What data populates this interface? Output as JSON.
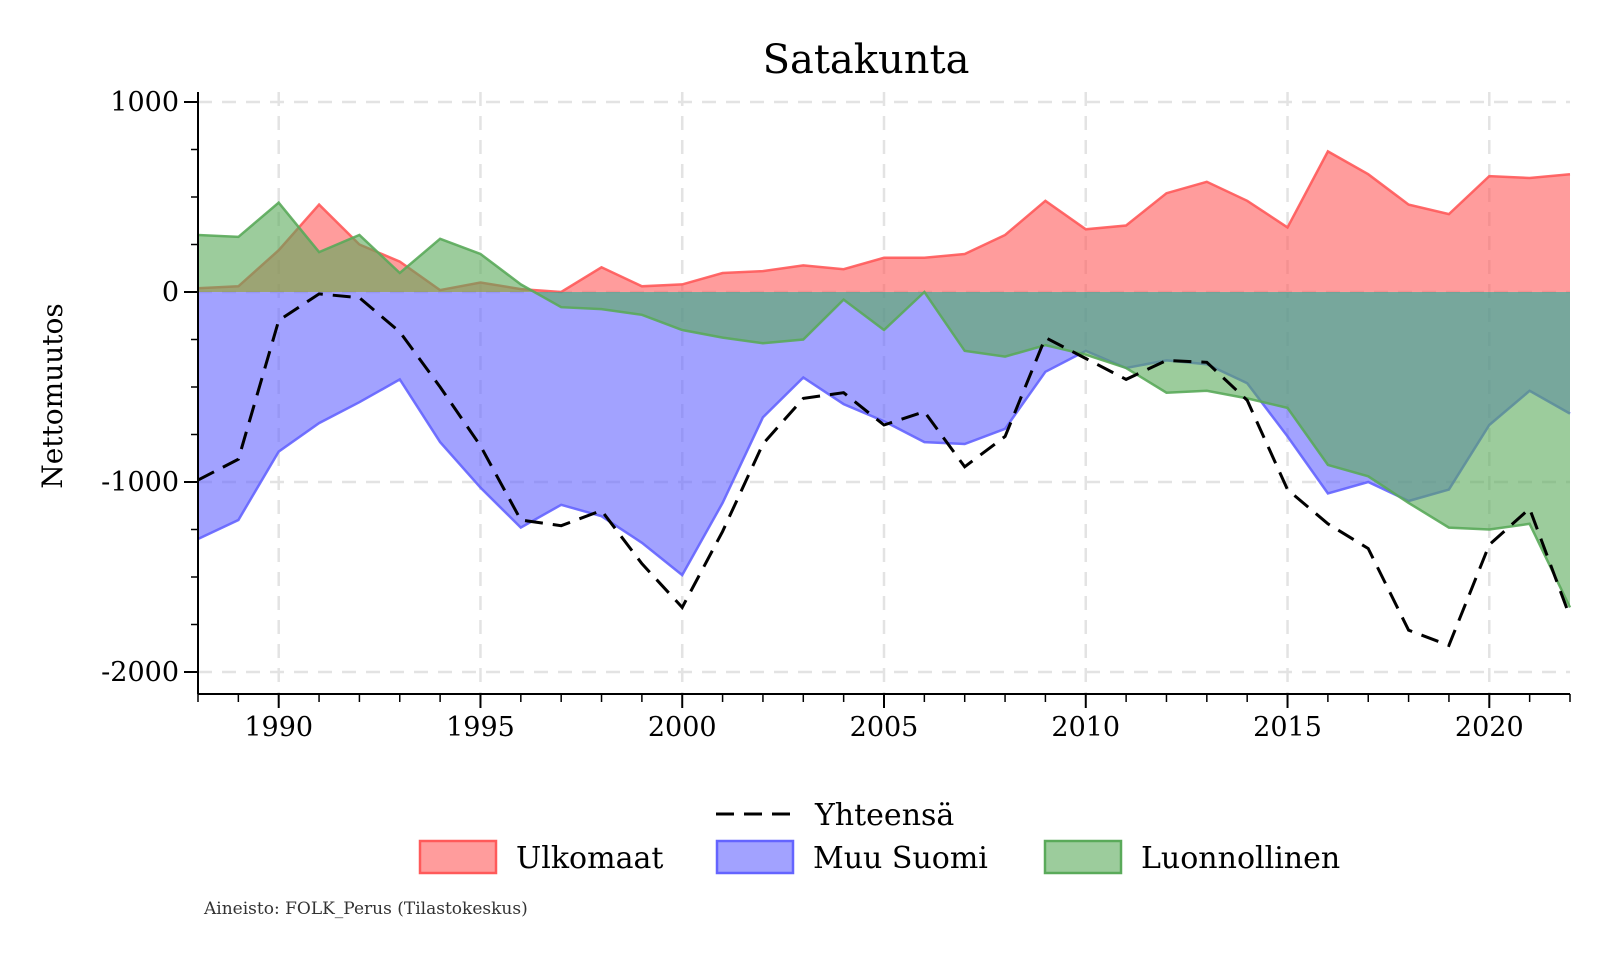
{
  "chart_data": {
    "type": "area",
    "title": "Satakunta",
    "xlabel": "",
    "ylabel": "Nettomuutos",
    "xlim": [
      1988,
      2022
    ],
    "ylim": [
      -2100,
      1000
    ],
    "x_ticks": [
      1990,
      1995,
      2000,
      2005,
      2010,
      2015,
      2020
    ],
    "y_ticks": [
      1000,
      0,
      -1000,
      -2000
    ],
    "y_tick_labels": [
      "1000",
      "0",
      "-1000",
      "-2000"
    ],
    "grid": true,
    "legend_position": "bottom",
    "x": [
      1988,
      1989,
      1990,
      1991,
      1992,
      1993,
      1994,
      1995,
      1996,
      1997,
      1998,
      1999,
      2000,
      2001,
      2002,
      2003,
      2004,
      2005,
      2006,
      2007,
      2008,
      2009,
      2010,
      2011,
      2012,
      2013,
      2014,
      2015,
      2016,
      2017,
      2018,
      2019,
      2020,
      2021,
      2022
    ],
    "series": [
      {
        "name": "Ulkomaat",
        "kind": "area",
        "color": "#ff5a5a",
        "values": [
          20,
          30,
          220,
          460,
          250,
          160,
          10,
          50,
          15,
          0,
          130,
          30,
          40,
          100,
          110,
          140,
          120,
          180,
          180,
          200,
          300,
          480,
          330,
          350,
          520,
          580,
          480,
          340,
          740,
          620,
          460,
          410,
          610,
          600,
          620
        ]
      },
      {
        "name": "Muu Suomi",
        "kind": "area",
        "color": "#6464ff",
        "values": [
          -1300,
          -1200,
          -840,
          -690,
          -580,
          -460,
          -790,
          -1030,
          -1240,
          -1120,
          -1180,
          -1320,
          -1490,
          -1110,
          -660,
          -450,
          -590,
          -680,
          -790,
          -800,
          -720,
          -420,
          -310,
          -400,
          -360,
          -380,
          -480,
          -760,
          -1060,
          -1000,
          -1100,
          -1040,
          -700,
          -520,
          -640
        ]
      },
      {
        "name": "Luonnollinen",
        "kind": "area",
        "color": "#5aaa5a",
        "values": [
          300,
          290,
          470,
          210,
          300,
          100,
          280,
          200,
          40,
          -80,
          -90,
          -120,
          -200,
          -240,
          -270,
          -250,
          -40,
          -200,
          0,
          -310,
          -340,
          -280,
          -330,
          -400,
          -530,
          -520,
          -560,
          -610,
          -910,
          -970,
          -1110,
          -1240,
          -1250,
          -1220,
          -1660
        ]
      },
      {
        "name": "Yhteensä",
        "kind": "line",
        "color": "#000000",
        "values": [
          -990,
          -880,
          -150,
          -10,
          -30,
          -210,
          -500,
          -810,
          -1200,
          -1230,
          -1150,
          -1430,
          -1660,
          -1260,
          -800,
          -560,
          -530,
          -700,
          -630,
          -920,
          -760,
          -240,
          -350,
          -460,
          -360,
          -370,
          -570,
          -1040,
          -1220,
          -1350,
          -1780,
          -1860,
          -1330,
          -1140,
          -1710
        ]
      }
    ],
    "legend": {
      "line_label": "Yhteensä",
      "area_labels": [
        "Ulkomaat",
        "Muu Suomi",
        "Luonnollinen"
      ]
    },
    "source_note": "Aineisto: FOLK_Perus (Tilastokeskus)"
  }
}
